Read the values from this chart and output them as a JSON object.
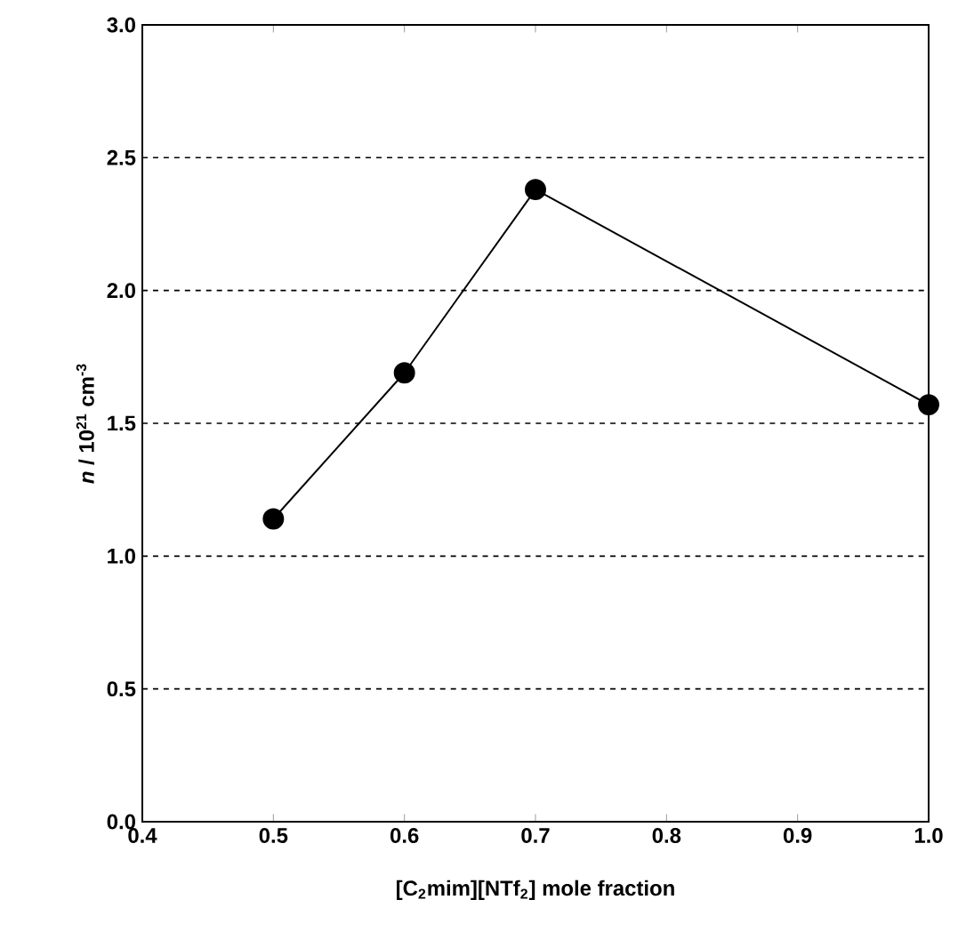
{
  "chart_data": {
    "type": "line",
    "xlabel": "[C$_{2}$mim][NTf$_{2}$] mole fraction",
    "ylabel": "*n* / 10$^{21}$ cm$^{-3}$",
    "x": [
      0.5,
      0.6,
      0.7,
      1.0
    ],
    "series": [
      {
        "color": "#000000",
        "values": [
          1.14,
          1.69,
          2.38,
          1.57
        ]
      }
    ],
    "xlim": [
      0.4,
      1.0
    ],
    "xticks": [
      {
        "value": 0.4,
        "label": "0.4"
      },
      {
        "value": 0.5,
        "label": "0.5"
      },
      {
        "value": 0.6,
        "label": "0.6"
      },
      {
        "value": 0.7,
        "label": "0.7"
      },
      {
        "value": 0.8,
        "label": "0.8"
      },
      {
        "value": 0.9,
        "label": "0.9"
      },
      {
        "value": 1.0,
        "label": "1.0"
      }
    ],
    "ylim": [
      0,
      3
    ],
    "yticks": [
      {
        "value": 0,
        "label": "0.0"
      },
      {
        "value": 0.5,
        "label": "0.5"
      },
      {
        "value": 1.0,
        "label": "1.0"
      },
      {
        "value": 1.5,
        "label": "1.5"
      },
      {
        "value": 2.0,
        "label": "2.0"
      },
      {
        "value": 2.5,
        "label": "2.5"
      },
      {
        "value": 3.0,
        "label": "3.0"
      }
    ],
    "grid": "y",
    "marker": "circle",
    "line_style": "solid"
  }
}
